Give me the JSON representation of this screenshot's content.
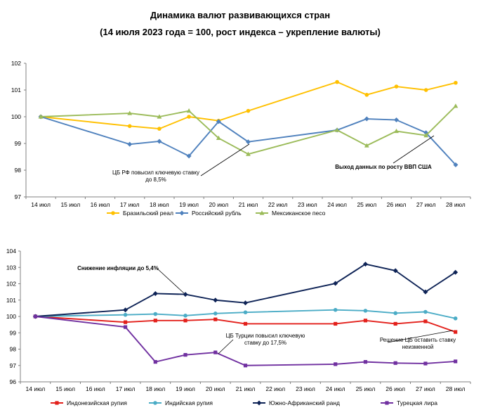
{
  "title": {
    "line1": "Динамика валют развивающихся стран",
    "line2": "(14 июля 2023 года = 100, рост индекса – укрепление валюты)"
  },
  "chart_data": [
    {
      "type": "line",
      "categories": [
        "14 июл",
        "15 июл",
        "16 июл",
        "17 июл",
        "18 июл",
        "19 июл",
        "20 июл",
        "21 июл",
        "22 июл",
        "23 июл",
        "24 июл",
        "25 июл",
        "26 июл",
        "27 июл",
        "28 июл"
      ],
      "ylim": [
        97,
        102
      ],
      "yticks": [
        "97",
        "98",
        "99",
        "100",
        "101",
        "102"
      ],
      "series": [
        {
          "name": "Бразильский реал",
          "color": "#FFC000",
          "marker": "circle",
          "values": [
            100.0,
            null,
            null,
            99.65,
            99.55,
            100.0,
            99.85,
            100.22,
            null,
            null,
            101.3,
            100.82,
            101.13,
            101.0,
            101.27
          ]
        },
        {
          "name": "Российский рубль",
          "color": "#4F81BD",
          "marker": "diamond",
          "values": [
            100.0,
            null,
            null,
            98.97,
            99.08,
            98.53,
            99.82,
            99.06,
            null,
            null,
            99.5,
            99.92,
            99.88,
            99.4,
            98.2
          ]
        },
        {
          "name": "Мексиканское песо",
          "color": "#9BBB59",
          "marker": "triangle",
          "values": [
            100.0,
            null,
            null,
            100.13,
            100.0,
            100.22,
            99.2,
            98.6,
            null,
            null,
            99.5,
            98.92,
            99.46,
            99.3,
            100.4
          ]
        }
      ],
      "annotations": [
        {
          "lines": [
            "ЦБ РФ повысил ключевую ставку",
            "до 8,5%"
          ]
        },
        {
          "lines": [
            "Выход данных по росту ВВП США"
          ]
        }
      ]
    },
    {
      "type": "line",
      "categories": [
        "14 июл",
        "15 июл",
        "16 июл",
        "17 июл",
        "18 июл",
        "19 июл",
        "20 июл",
        "21 июл",
        "22 июл",
        "23 июл",
        "24 июл",
        "25 июл",
        "26 июл",
        "27 июл",
        "28 июл"
      ],
      "ylim": [
        96,
        104
      ],
      "yticks": [
        "96",
        "97",
        "98",
        "99",
        "100",
        "101",
        "102",
        "103",
        "104"
      ],
      "series": [
        {
          "name": "Индонезийская рупия",
          "color": "#E3201B",
          "marker": "square",
          "values": [
            100.0,
            null,
            null,
            99.65,
            99.75,
            99.75,
            99.82,
            99.55,
            null,
            null,
            99.55,
            99.75,
            99.55,
            99.7,
            99.05
          ]
        },
        {
          "name": "Индийская рупия",
          "color": "#4BACC6",
          "marker": "circle",
          "values": [
            100.0,
            null,
            null,
            100.1,
            100.15,
            100.05,
            100.18,
            100.25,
            null,
            null,
            100.4,
            100.35,
            100.2,
            100.28,
            99.88
          ]
        },
        {
          "name": "Южно-Африканский ранд",
          "color": "#0E2356",
          "marker": "diamond",
          "values": [
            100.0,
            null,
            null,
            100.4,
            101.4,
            101.35,
            101.0,
            100.83,
            null,
            null,
            102.02,
            103.2,
            102.8,
            101.5,
            102.7
          ]
        },
        {
          "name": "Турецкая лира",
          "color": "#7030A0",
          "marker": "square",
          "values": [
            100.0,
            null,
            null,
            99.35,
            97.22,
            97.65,
            97.8,
            97.0,
            null,
            null,
            97.08,
            97.22,
            97.15,
            97.12,
            97.25
          ]
        }
      ],
      "annotations": [
        {
          "lines": [
            "Снижение инфляции до 5,4%"
          ]
        },
        {
          "lines": [
            "ЦБ Турции повысил ключевую",
            "ставку до 17,5%"
          ]
        },
        {
          "lines": [
            "Решение ЦБ оставить ставку",
            "неизменной"
          ]
        }
      ]
    }
  ]
}
